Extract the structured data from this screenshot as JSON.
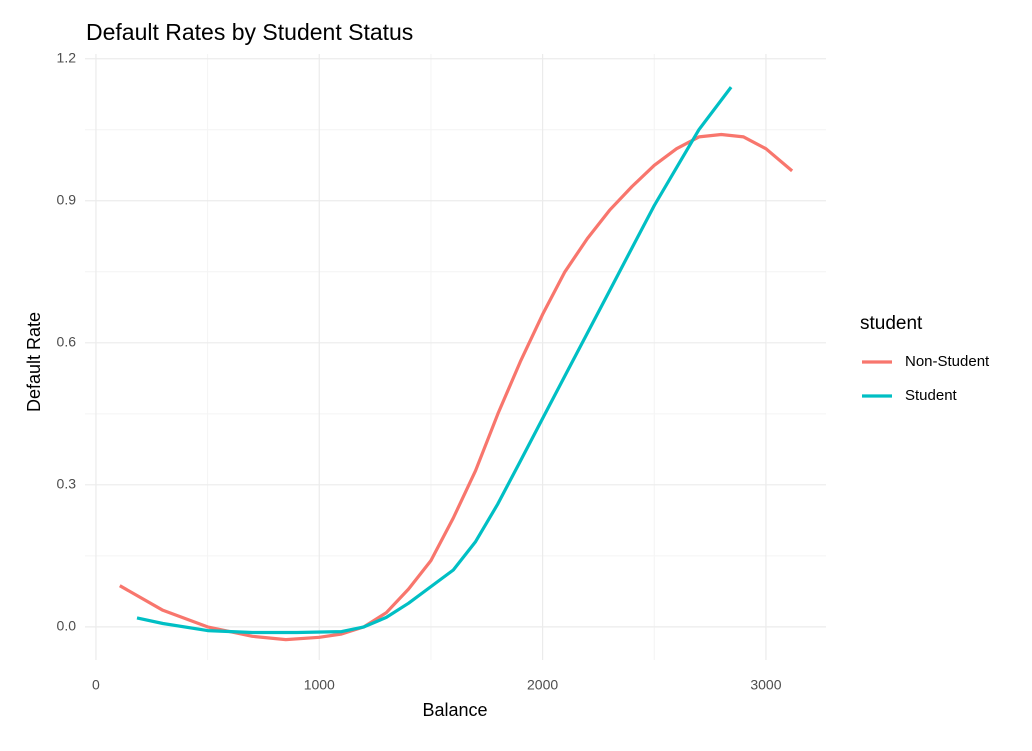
{
  "chart_data": {
    "type": "line",
    "title": "Default Rates by Student Status",
    "x_label": "Balance",
    "y_label": "Default Rate",
    "legend_title": "student",
    "xlim": [
      -49,
      3269
    ],
    "ylim": [
      -0.07,
      1.21
    ],
    "xticks": [
      0,
      1000,
      2000,
      3000
    ],
    "yticks": [
      {
        "value": 0,
        "label": "0.0"
      },
      {
        "value": 0.3,
        "label": "0.3"
      },
      {
        "value": 0.6,
        "label": "0.6"
      },
      {
        "value": 0.9,
        "label": "0.9"
      },
      {
        "value": 1.2,
        "label": "1.2"
      }
    ],
    "grid": true,
    "legend": "right",
    "series": [
      {
        "name": "Non-Student",
        "color": "#F8766D",
        "x": [
          107,
          300,
          500,
          700,
          850,
          1000,
          1100,
          1200,
          1300,
          1400,
          1500,
          1600,
          1700,
          1800,
          1900,
          2000,
          2100,
          2200,
          2300,
          2400,
          2500,
          2600,
          2700,
          2800,
          2900,
          3000,
          3117
        ],
        "values": [
          0.087,
          0.035,
          0.0,
          -0.02,
          -0.027,
          -0.022,
          -0.015,
          0.0,
          0.03,
          0.08,
          0.14,
          0.23,
          0.33,
          0.45,
          0.56,
          0.66,
          0.75,
          0.82,
          0.88,
          0.93,
          0.975,
          1.01,
          1.035,
          1.04,
          1.035,
          1.01,
          0.963
        ]
      },
      {
        "name": "Student",
        "color": "#00BFC4",
        "x": [
          184,
          300,
          500,
          700,
          900,
          1100,
          1200,
          1300,
          1400,
          1500,
          1600,
          1700,
          1800,
          1900,
          2000,
          2100,
          2200,
          2300,
          2400,
          2500,
          2600,
          2700,
          2844
        ],
        "values": [
          0.019,
          0.007,
          -0.008,
          -0.012,
          -0.012,
          -0.01,
          0.0,
          0.02,
          0.05,
          0.085,
          0.12,
          0.18,
          0.26,
          0.35,
          0.44,
          0.53,
          0.62,
          0.71,
          0.8,
          0.89,
          0.97,
          1.05,
          1.14
        ]
      }
    ]
  }
}
